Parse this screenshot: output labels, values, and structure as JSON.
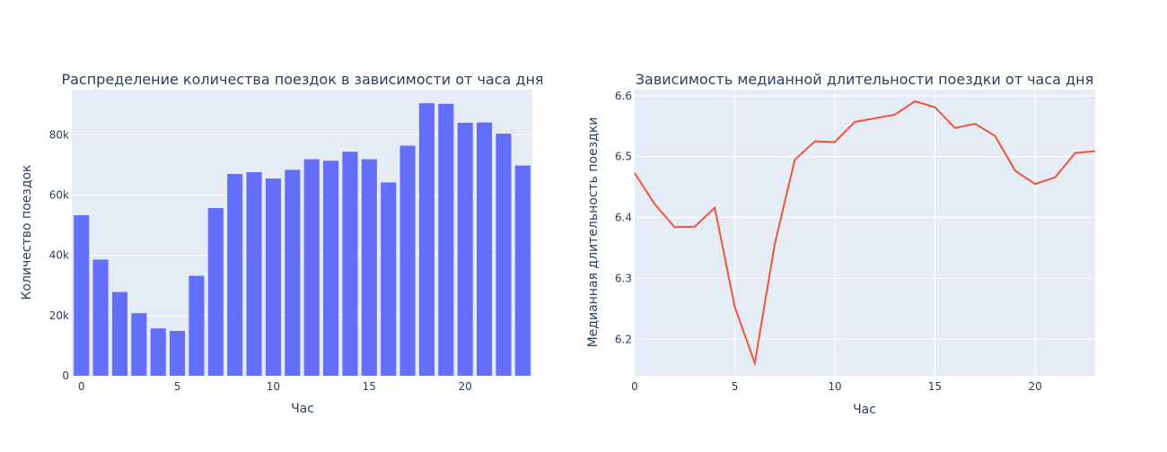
{
  "colors": {
    "plot_bg": "#E5ECF6",
    "grid": "#ffffff",
    "bar": "#636EFA",
    "line": "#EF553B",
    "text": "#2a3f5f"
  },
  "chart_data": [
    {
      "type": "bar",
      "title": "Распределение количества поездок в зависимости от часа дня",
      "xlabel": "Час",
      "ylabel": "Количество поездок",
      "x": [
        0,
        1,
        2,
        3,
        4,
        5,
        6,
        7,
        8,
        9,
        10,
        11,
        12,
        13,
        14,
        15,
        16,
        17,
        18,
        19,
        20,
        21,
        22,
        23
      ],
      "values": [
        53300,
        38600,
        27800,
        20800,
        15700,
        14900,
        33200,
        55700,
        67000,
        67600,
        65500,
        68400,
        71900,
        71400,
        74400,
        71900,
        64200,
        76400,
        90500,
        90300,
        84000,
        84100,
        80400,
        69800
      ],
      "xlim": [
        -0.5,
        23.5
      ],
      "ylim": [
        0,
        95000
      ],
      "xticks": [
        0,
        5,
        10,
        15,
        20
      ],
      "xtick_labels": [
        "0",
        "5",
        "10",
        "15",
        "20"
      ],
      "yticks": [
        0,
        20000,
        40000,
        60000,
        80000
      ],
      "ytick_labels": [
        "0",
        "20k",
        "40k",
        "60k",
        "80k"
      ],
      "grid": true
    },
    {
      "type": "line",
      "title": "Зависимость медианной длительности поездки от часа дня",
      "xlabel": "Час",
      "ylabel": "Медианная длительность поездки",
      "x": [
        0,
        1,
        2,
        3,
        4,
        5,
        6,
        7,
        8,
        9,
        10,
        11,
        12,
        13,
        14,
        15,
        16,
        17,
        18,
        19,
        20,
        21,
        22,
        23
      ],
      "y": [
        6.473,
        6.422,
        6.384,
        6.385,
        6.416,
        6.253,
        6.161,
        6.357,
        6.495,
        6.525,
        6.524,
        6.557,
        6.563,
        6.569,
        6.591,
        6.581,
        6.547,
        6.554,
        6.534,
        6.477,
        6.455,
        6.466,
        6.506,
        6.509
      ],
      "xlim": [
        0,
        23
      ],
      "ylim": [
        6.14,
        6.61
      ],
      "xticks": [
        0,
        5,
        10,
        15,
        20
      ],
      "xtick_labels": [
        "0",
        "5",
        "10",
        "15",
        "20"
      ],
      "yticks": [
        6.2,
        6.3,
        6.4,
        6.5,
        6.6
      ],
      "ytick_labels": [
        "6.2",
        "6.3",
        "6.4",
        "6.5",
        "6.6"
      ],
      "grid": true
    }
  ]
}
